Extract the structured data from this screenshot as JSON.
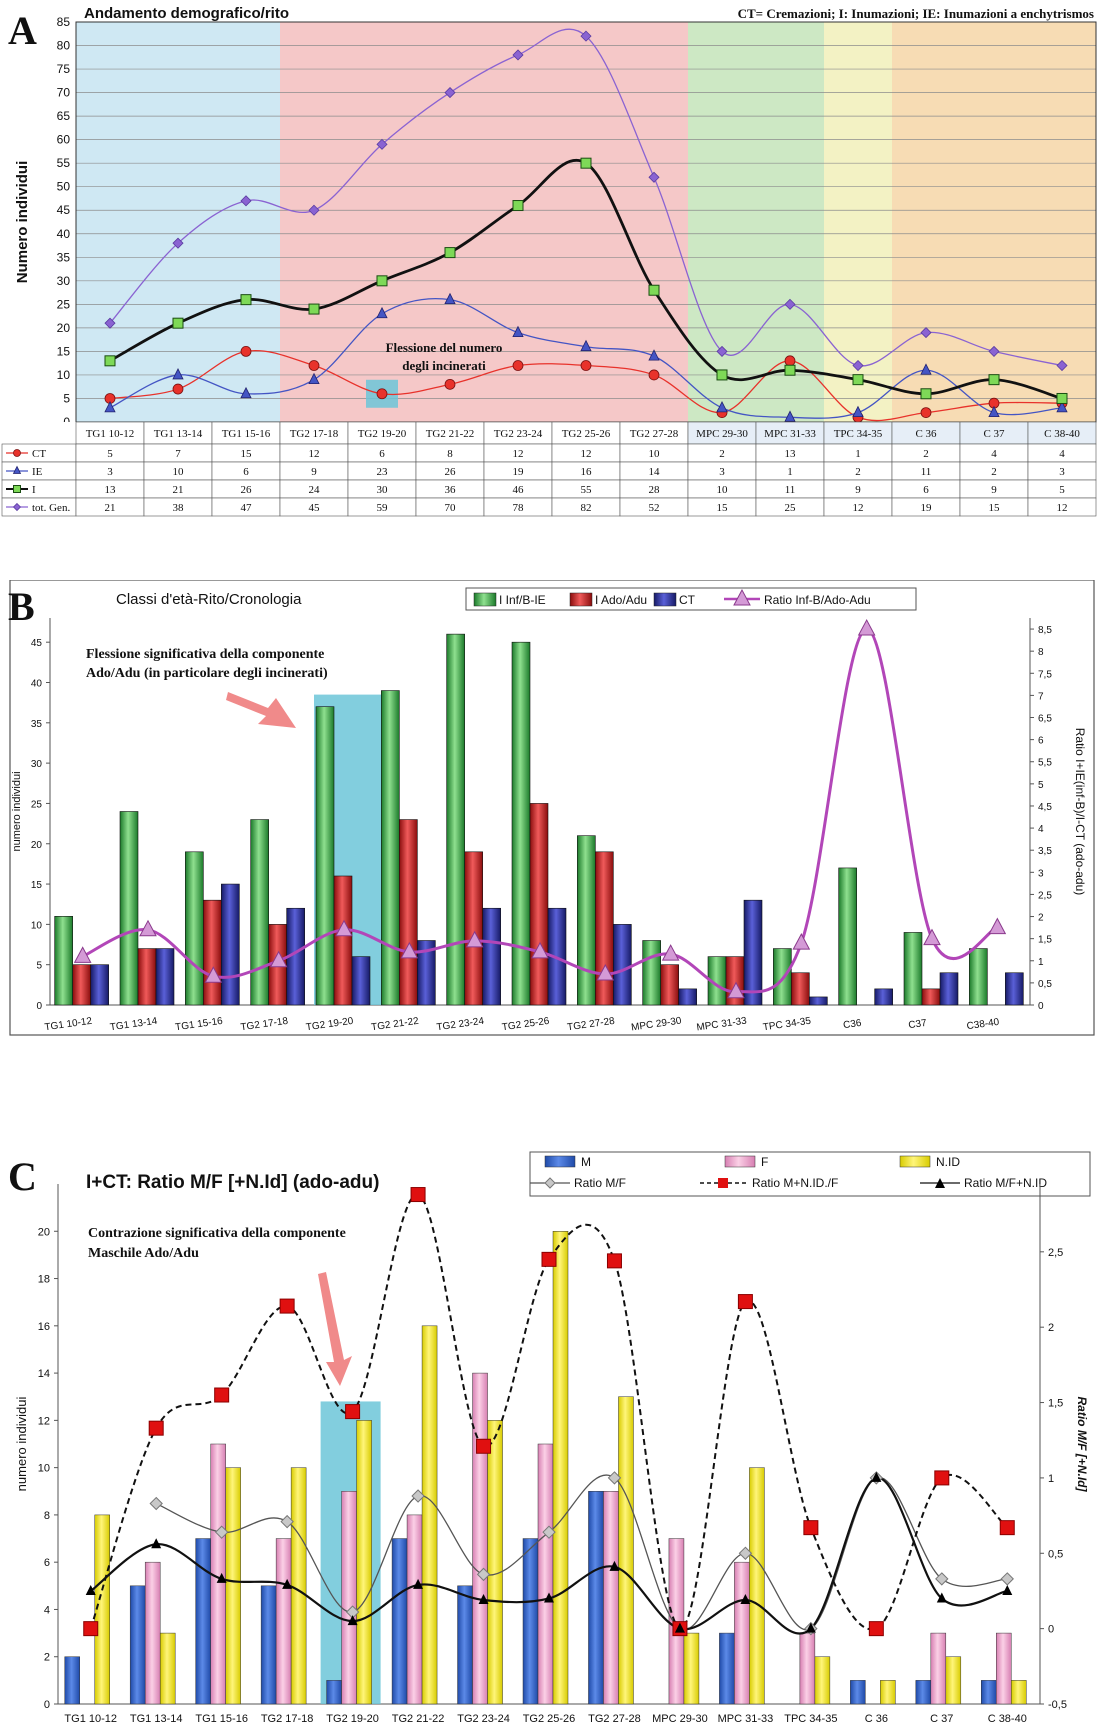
{
  "chart_data": [
    {
      "panel": "A",
      "type": "line",
      "title": "Andamento demografico/rito",
      "legend_text": "CT= Cremazioni; I: Inumazioni; IE: Inumazioni a enchytrismos",
      "ylabel": "Numero individui",
      "ylim": [
        0,
        85
      ],
      "yticks": [
        0,
        5,
        10,
        15,
        20,
        25,
        30,
        35,
        40,
        45,
        50,
        55,
        60,
        65,
        70,
        75,
        80,
        85
      ],
      "grid": true,
      "categories": [
        "TG1 10-12",
        "TG1 13-14",
        "TG1 15-16",
        "TG2 17-18",
        "TG2 19-20",
        "TG2 21-22",
        "TG2 23-24",
        "TG2 25-26",
        "TG2 27-28",
        "MPC 29-30",
        "MPC 31-33",
        "TPC 34-35",
        "C 36",
        "C 37",
        "C 38-40"
      ],
      "background_bands": [
        {
          "from": 0,
          "to": 2,
          "color": "#cfe8f3"
        },
        {
          "from": 3,
          "to": 8,
          "color": "#f5c8c8"
        },
        {
          "from": 9,
          "to": 10,
          "color": "#cde8c4"
        },
        {
          "from": 11,
          "to": 11,
          "color": "#f3f2c4"
        },
        {
          "from": 12,
          "to": 14,
          "color": "#f7dcb4"
        }
      ],
      "series": [
        {
          "name": "CT",
          "color": "#e8322b",
          "marker": "circle",
          "values": [
            5,
            7,
            15,
            12,
            6,
            8,
            12,
            12,
            10,
            2,
            13,
            1,
            2,
            4,
            4
          ]
        },
        {
          "name": "IE",
          "color": "#4455c4",
          "marker": "triangle",
          "values": [
            3,
            10,
            6,
            9,
            23,
            26,
            19,
            16,
            14,
            3,
            1,
            2,
            11,
            2,
            3
          ]
        },
        {
          "name": "I",
          "color": "#111111",
          "marker": "square",
          "values": [
            13,
            21,
            26,
            24,
            30,
            36,
            46,
            55,
            28,
            10,
            11,
            9,
            6,
            9,
            5
          ]
        },
        {
          "name": "tot. Gen.",
          "color": "#8a63d2",
          "marker": "diamond",
          "values": [
            21,
            38,
            47,
            45,
            59,
            70,
            78,
            82,
            52,
            15,
            25,
            12,
            19,
            15,
            12
          ]
        }
      ],
      "annotations": [
        {
          "text": [
            "Flessione del numero",
            "degli incinerati"
          ],
          "category_index": 4
        }
      ]
    },
    {
      "panel": "B",
      "type": "bar",
      "title": "Classi d'età-Rito/Cronologia",
      "ylabel": "numero individui",
      "y2label": "Ratio I+IE(inf-B)/I-CT (ado-adu)",
      "ylim": [
        0,
        48
      ],
      "yticks": [
        0,
        5,
        10,
        15,
        20,
        25,
        30,
        35,
        40,
        45
      ],
      "y2lim": [
        0,
        8.75
      ],
      "y2ticks": [
        "0",
        "0,5",
        "1",
        "1,5",
        "2",
        "2,5",
        "3",
        "3,5",
        "4",
        "4,5",
        "5",
        "5,5",
        "6",
        "6,5",
        "7",
        "7,5",
        "8",
        "8,5"
      ],
      "legend_position": "top",
      "categories": [
        "TG1 10-12",
        "TG1 13-14",
        "TG1 15-16",
        "TG2 17-18",
        "TG2 19-20",
        "TG2 21-22",
        "TG2 23-24",
        "TG2 25-26",
        "TG2 27-28",
        "MPC 29-30",
        "MPC 31-33",
        "TPC 34-35",
        "C36",
        "C37",
        "C38-40"
      ],
      "series": [
        {
          "name": "I Inf/B-IE",
          "color": "#2ca03c",
          "values": [
            11,
            24,
            19,
            23,
            37,
            39,
            46,
            45,
            21,
            8,
            6,
            7,
            17,
            9,
            7
          ]
        },
        {
          "name": "I Ado/Adu",
          "color": "#cc2222",
          "values": [
            5,
            7,
            13,
            10,
            16,
            23,
            19,
            25,
            19,
            5,
            6,
            4,
            0,
            2,
            0
          ]
        },
        {
          "name": "CT",
          "color": "#2a2f9e",
          "values": [
            5,
            7,
            15,
            12,
            6,
            8,
            12,
            12,
            10,
            2,
            13,
            1,
            2,
            4,
            4
          ]
        },
        {
          "name": "Ratio Inf-B/Ado-Adu",
          "color": "#b246b8",
          "axis": "right",
          "type": "line",
          "values": [
            1.1,
            1.7,
            0.65,
            1.0,
            1.7,
            1.2,
            1.45,
            1.2,
            0.7,
            1.15,
            0.3,
            1.4,
            8.5,
            1.5,
            1.75
          ]
        }
      ],
      "annotations": [
        {
          "text": [
            "Flessione significativa della componente",
            "Ado/Adu (in particolare degli incinerati)"
          ],
          "category_index": 4
        }
      ]
    },
    {
      "panel": "C",
      "type": "bar",
      "title": "I+CT: Ratio M/F [+N.Id] (ado-adu)",
      "ylabel": "numero individui",
      "y2label": "Ratio M/F [+N.Id]",
      "ylim": [
        0,
        22
      ],
      "yticks": [
        0,
        2,
        4,
        6,
        8,
        10,
        12,
        14,
        16,
        18,
        20
      ],
      "y2lim": [
        -0.5,
        2.95
      ],
      "y2ticks": [
        "-0,5",
        "0",
        "0,5",
        "1",
        "1,5",
        "2",
        "2,5"
      ],
      "legend_position": "top-right",
      "categories": [
        "TG1 10-12",
        "TG1 13-14",
        "TG1 15-16",
        "TG2 17-18",
        "TG2 19-20",
        "TG2 21-22",
        "TG2 23-24",
        "TG2 25-26",
        "TG2 27-28",
        "MPC 29-30",
        "MPC 31-33",
        "TPC 34-35",
        "C 36",
        "C 37",
        "C 38-40"
      ],
      "series": [
        {
          "name": "M",
          "color": "#2e5ec6",
          "values": [
            2,
            5,
            7,
            5,
            1,
            7,
            5,
            7,
            9,
            0,
            3,
            0,
            1,
            1,
            1
          ]
        },
        {
          "name": "F",
          "color": "#f3a6d0",
          "values": [
            0,
            6,
            11,
            7,
            9,
            8,
            14,
            11,
            9,
            7,
            6,
            3,
            0,
            3,
            3
          ]
        },
        {
          "name": "N.ID",
          "color": "#f5ea1a",
          "values": [
            8,
            3,
            10,
            10,
            12,
            16,
            12,
            20,
            13,
            3,
            10,
            2,
            1,
            2,
            1
          ]
        },
        {
          "name": "Ratio M/F",
          "color": "#444444",
          "axis": "right",
          "type": "line",
          "values": [
            null,
            0.83,
            0.64,
            0.71,
            0.11,
            0.88,
            0.36,
            0.64,
            1.0,
            0.0,
            0.5,
            0.0,
            1.0,
            0.33,
            0.33
          ]
        },
        {
          "name": "Ratio M+N.ID./F",
          "color": "#dd1111",
          "axis": "right",
          "type": "line",
          "values": [
            0.0,
            1.33,
            1.55,
            2.14,
            1.44,
            2.88,
            1.21,
            2.45,
            2.44,
            0.0,
            2.17,
            0.67,
            0.0,
            1.0,
            0.67
          ]
        },
        {
          "name": "Ratio M/F+N.ID",
          "color": "#000000",
          "axis": "right",
          "type": "line",
          "values": [
            0.25,
            0.56,
            0.33,
            0.29,
            0.05,
            0.29,
            0.19,
            0.2,
            0.41,
            0.0,
            0.19,
            0.0,
            1.0,
            0.2,
            0.25
          ]
        }
      ],
      "annotations": [
        {
          "text": [
            "Contrazione significativa della componente",
            "Maschile Ado/Adu"
          ],
          "category_index": 4
        }
      ]
    }
  ],
  "labels": {
    "panel_a": "A",
    "panel_b": "B",
    "panel_c": "C"
  }
}
